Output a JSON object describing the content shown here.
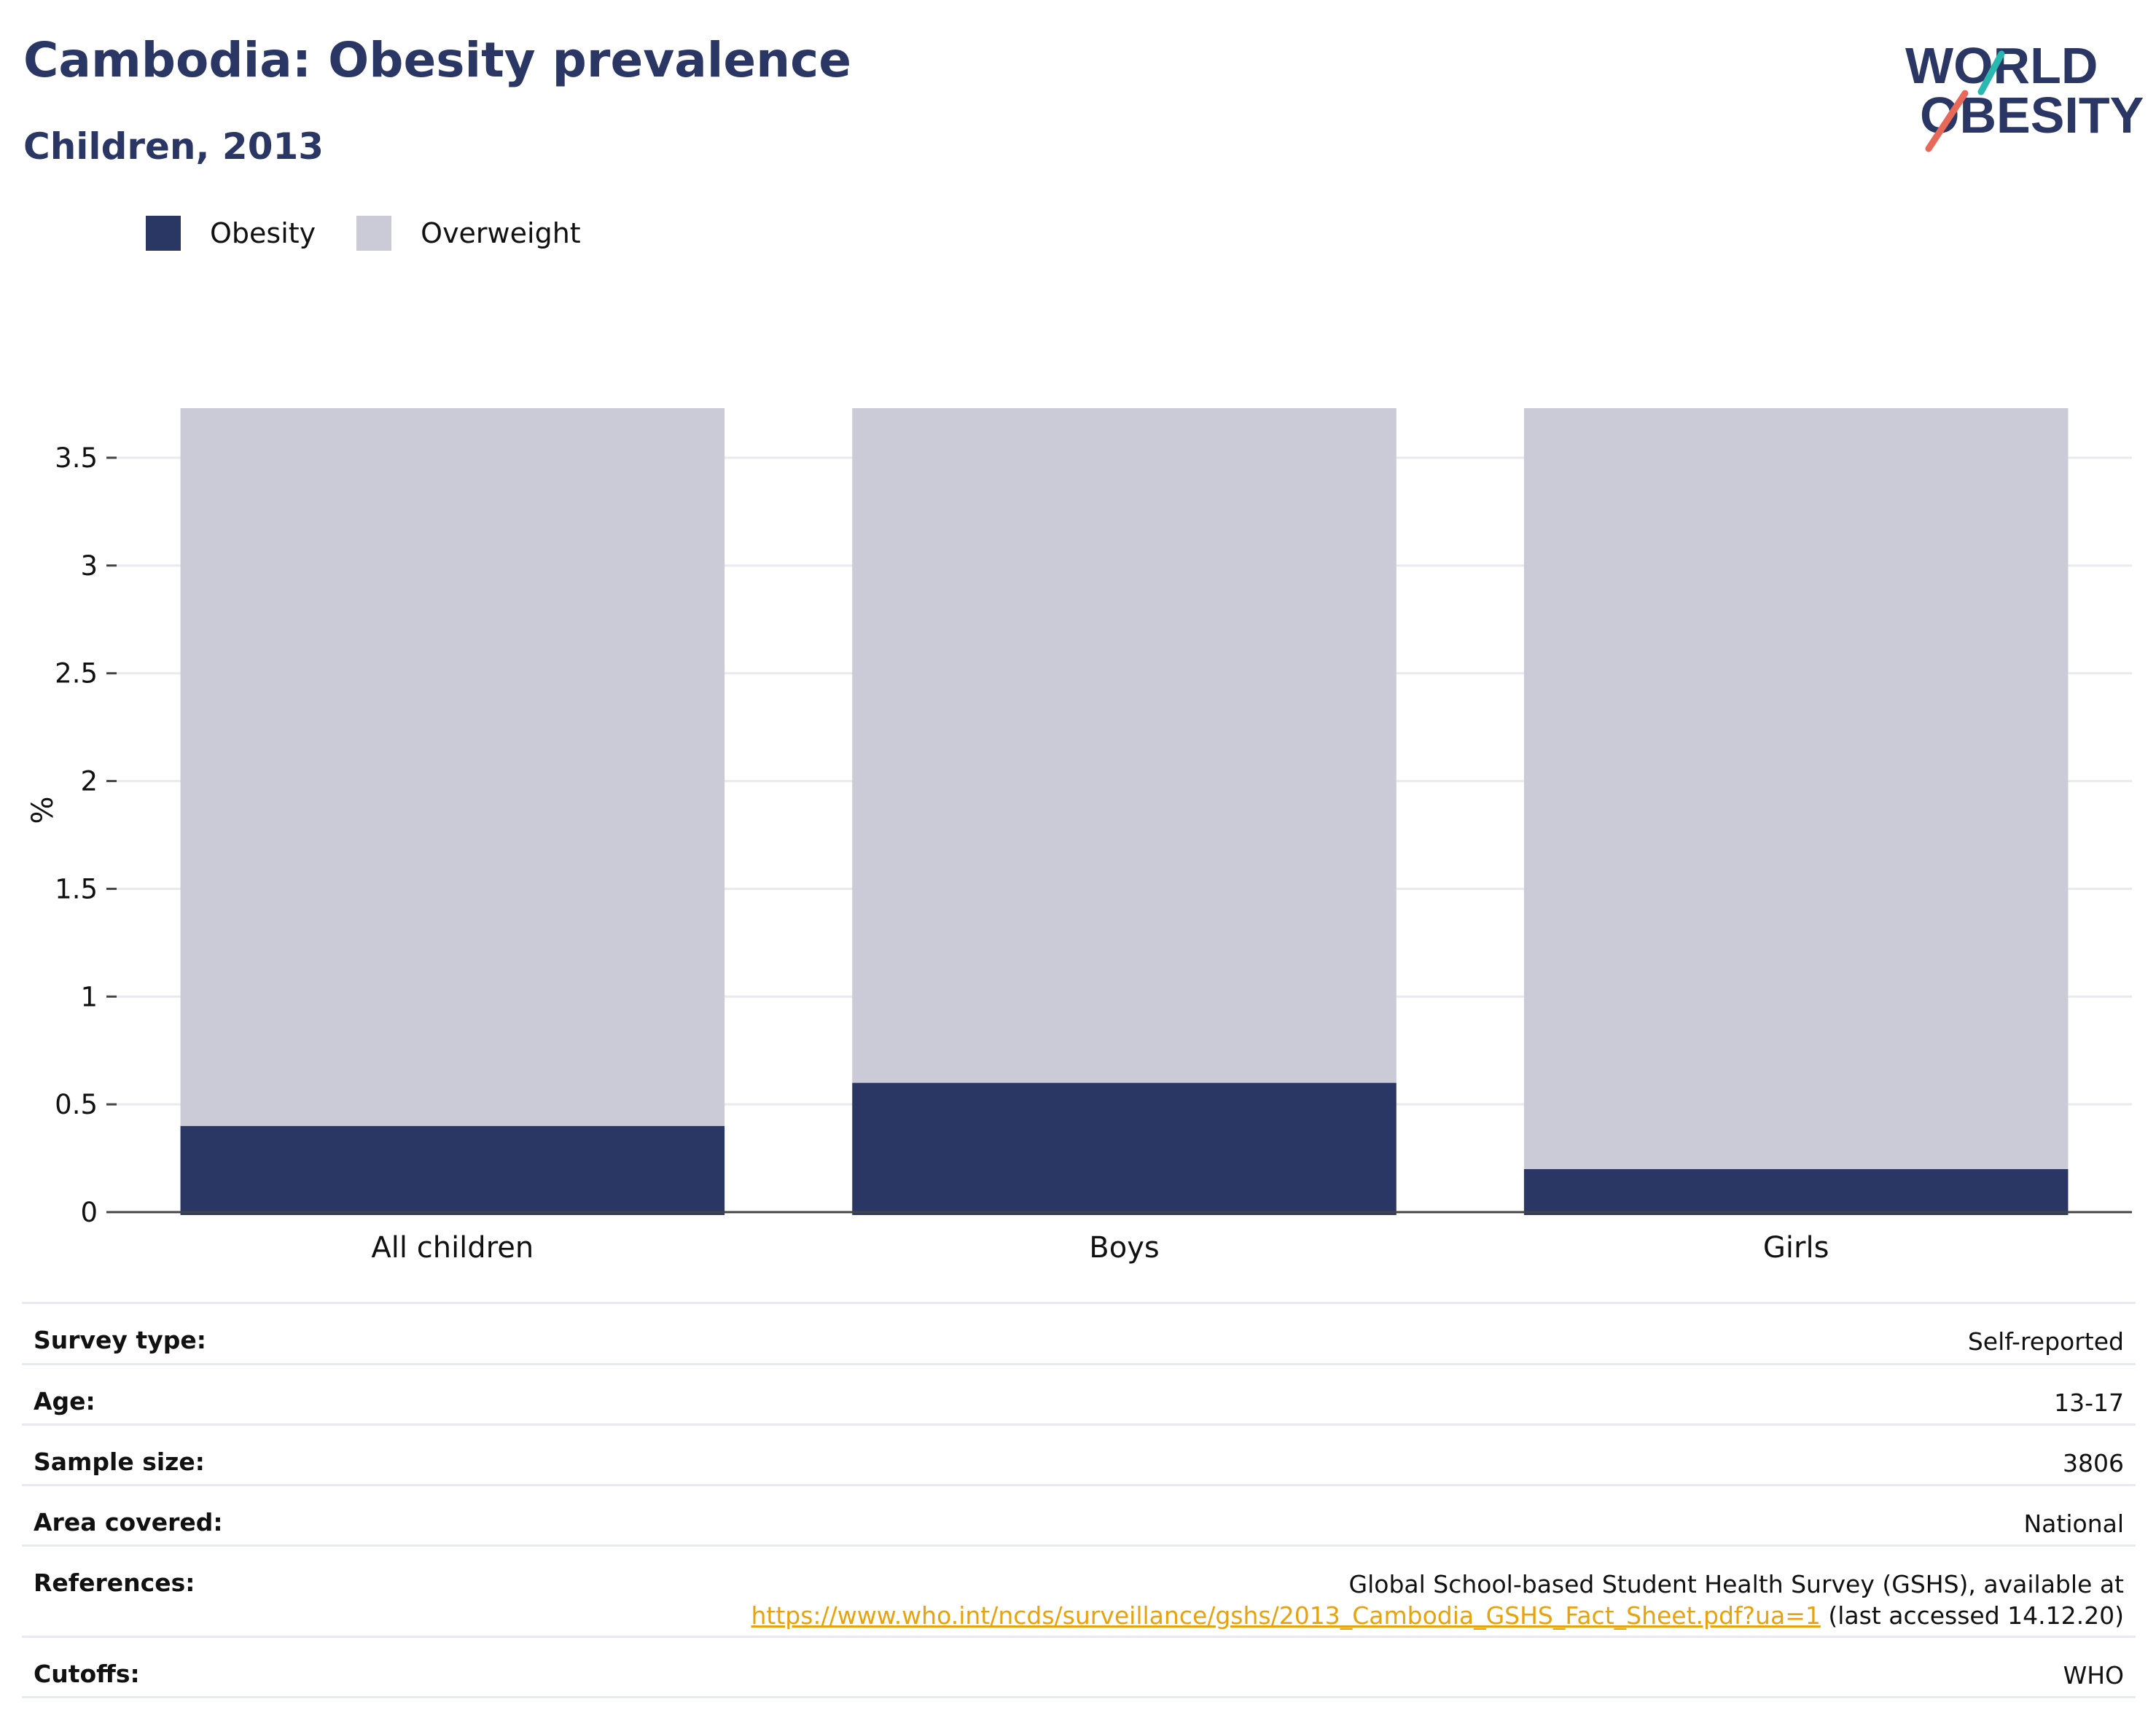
{
  "header": {
    "title": "Cambodia: Obesity prevalence",
    "subtitle": "Children, 2013",
    "logo_line1": "WORLD",
    "logo_line2": "OBESITY"
  },
  "colors": {
    "obesity": "#2a3664",
    "overweight": "#cacbd7",
    "title": "#2a3664",
    "link": "#e8a20d",
    "logo_teal": "#2ab7b0",
    "logo_coral": "#e8685a"
  },
  "legend": [
    {
      "name": "Obesity",
      "color": "#2a3664"
    },
    {
      "name": "Overweight",
      "color": "#cacbd7"
    }
  ],
  "chart_data": {
    "type": "bar",
    "stacked": true,
    "categories": [
      "All children",
      "Boys",
      "Girls"
    ],
    "series": [
      {
        "name": "Obesity",
        "values": [
          0.4,
          0.6,
          0.2
        ]
      },
      {
        "name": "Overweight",
        "values": [
          3.33,
          3.13,
          3.53
        ]
      }
    ],
    "ylabel": "%",
    "ylim": [
      0,
      3.73
    ],
    "yticks": [
      "0",
      "0.5",
      "1",
      "1.5",
      "2",
      "2.5",
      "3",
      "3.5"
    ],
    "ytick_values": [
      0,
      0.5,
      1,
      1.5,
      2,
      2.5,
      3,
      3.5
    ],
    "grid": true,
    "legend_position": "top-left"
  },
  "meta": {
    "survey_type_label": "Survey type:",
    "survey_type_value": "Self-reported",
    "age_label": "Age:",
    "age_value": "13-17",
    "sample_size_label": "Sample size:",
    "sample_size_value": "3806",
    "area_label": "Area covered:",
    "area_value": "National",
    "references_label": "References:",
    "references_line1": "Global School-based Student Health Survey (GSHS), available at",
    "references_link": "https://www.who.int/ncds/surveillance/gshs/2013_Cambodia_GSHS_Fact_Sheet.pdf?ua=1",
    "references_suffix": " (last accessed 14.12.20)",
    "cutoffs_label": "Cutoffs:",
    "cutoffs_value": "WHO"
  }
}
